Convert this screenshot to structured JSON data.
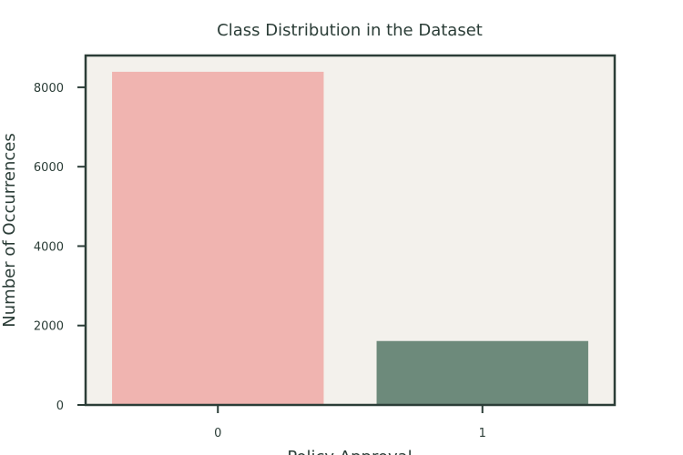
{
  "chart_data": {
    "type": "bar",
    "title": "Class Distribution in the Dataset",
    "xlabel": "Policy Approval",
    "ylabel": "Number of Occurrences",
    "categories": [
      "0",
      "1"
    ],
    "values": [
      8390,
      1610
    ],
    "ylim": [
      0,
      8800
    ],
    "yticks": [
      0,
      2000,
      4000,
      6000,
      8000
    ],
    "grid": false,
    "legend": "none",
    "colors": {
      "bars": [
        "#f0b4b0",
        "#6d8a7b"
      ],
      "plot_background": "#f3f1ec",
      "axes": "#2b3d37",
      "text": "#2b3d37"
    }
  }
}
